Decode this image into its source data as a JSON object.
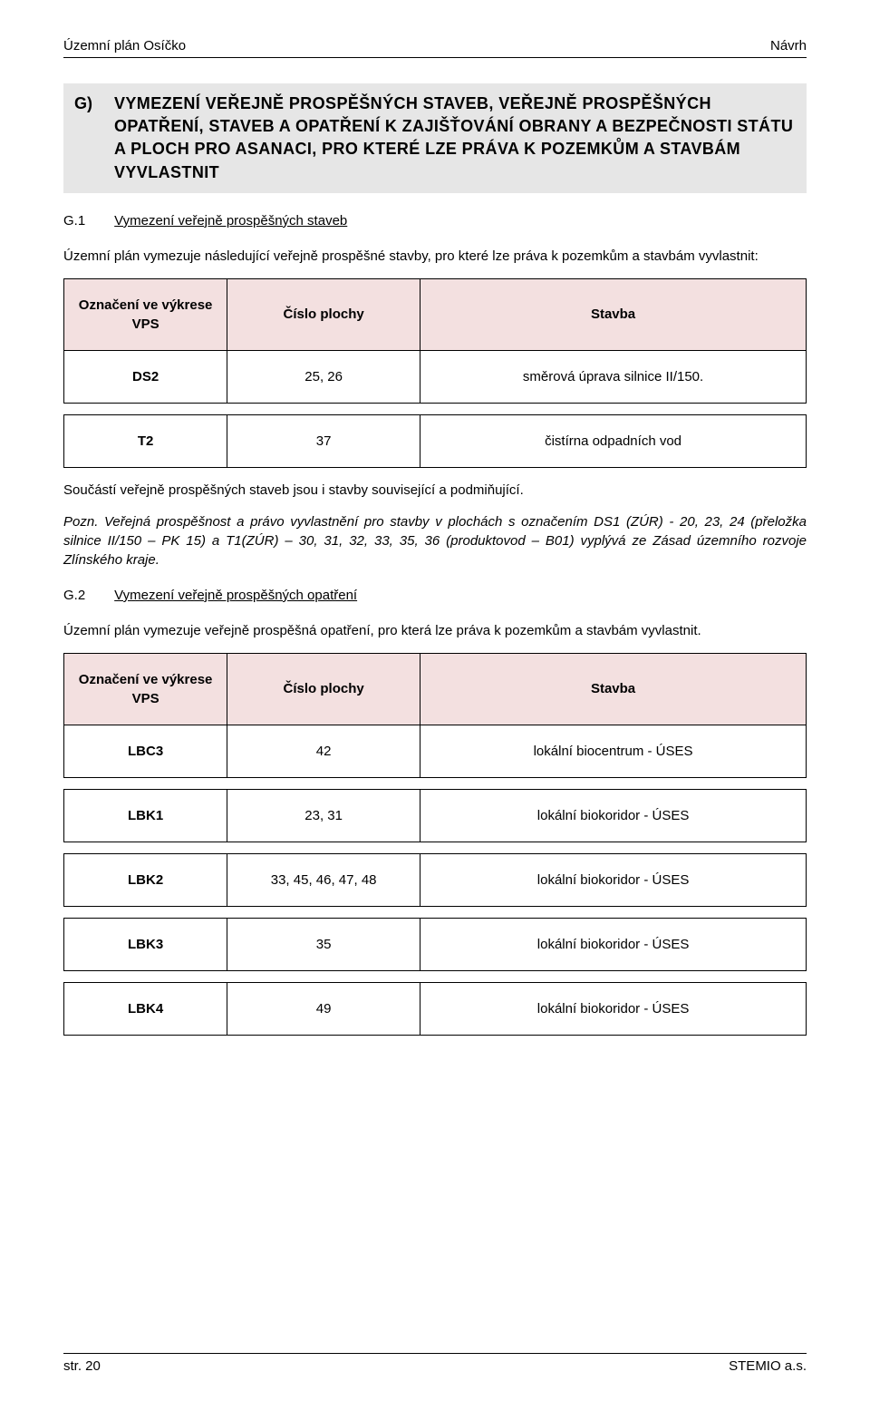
{
  "header": {
    "left": "Územní plán Osíčko",
    "right": "Návrh"
  },
  "sectionG": {
    "letter": "G)",
    "title": "VYMEZENÍ VEŘEJNĚ PROSPĚŠNÝCH STAVEB, VEŘEJNĚ PROSPĚŠNÝCH OPATŘENÍ, STAVEB A OPATŘENÍ K ZAJIŠŤOVÁNÍ OBRANY A BEZPEČNOSTI STÁTU A PLOCH PRO ASANACI, PRO KTERÉ LZE PRÁVA K POZEMKŮM A STAVBÁM VYVLASTNIT"
  },
  "g1": {
    "num": "G.1",
    "heading": "Vymezení veřejně prospěšných staveb",
    "intro": "Územní plán vymezuje následující veřejně prospěšné stavby, pro které lze práva k pozemkům a stavbám vyvlastnit:",
    "table": {
      "columns": [
        "Označení ve výkrese VPS",
        "Číslo plochy",
        "Stavba"
      ],
      "rows": [
        [
          "DS2",
          "25, 26",
          "směrová úprava silnice II/150."
        ],
        [
          "T2",
          "37",
          "čistírna odpadních vod"
        ]
      ]
    },
    "subtext": "Součástí veřejně prospěšných staveb jsou i stavby související a podmiňující.",
    "note": "Pozn. Veřejná prospěšnost a právo vyvlastnění pro stavby v plochách s označením DS1 (ZÚR) -  20, 23, 24 (přeložka silnice II/150 – PK 15) a T1(ZÚR) – 30, 31, 32, 33, 35, 36 (produktovod – B01) vyplývá ze Zásad územního rozvoje Zlínského kraje."
  },
  "g2": {
    "num": "G.2",
    "heading": "Vymezení veřejně prospěšných opatření",
    "intro": "Územní plán vymezuje veřejně prospěšná opatření, pro která lze práva k pozemkům a stavbám vyvlastnit.",
    "table": {
      "columns": [
        "Označení ve výkrese VPS",
        "Číslo plochy",
        "Stavba"
      ],
      "rows": [
        [
          "LBC3",
          "42",
          "lokální biocentrum - ÚSES"
        ],
        [
          "LBK1",
          "23, 31",
          "lokální biokoridor - ÚSES"
        ],
        [
          "LBK2",
          "33, 45, 46, 47, 48",
          "lokální biokoridor - ÚSES"
        ],
        [
          "LBK3",
          "35",
          "lokální biokoridor - ÚSES"
        ],
        [
          "LBK4",
          "49",
          "lokální biokoridor - ÚSES"
        ]
      ]
    }
  },
  "footer": {
    "left": "str. 20",
    "right": "STEMIO a.s."
  },
  "colors": {
    "page_bg": "#ffffff",
    "section_bg": "#e6e6e6",
    "table_header_bg": "#f3e0e0",
    "border": "#000000",
    "text": "#000000"
  },
  "typography": {
    "body_fontsize_pt": 11,
    "heading_fontsize_pt": 14,
    "font_family": "Arial"
  }
}
